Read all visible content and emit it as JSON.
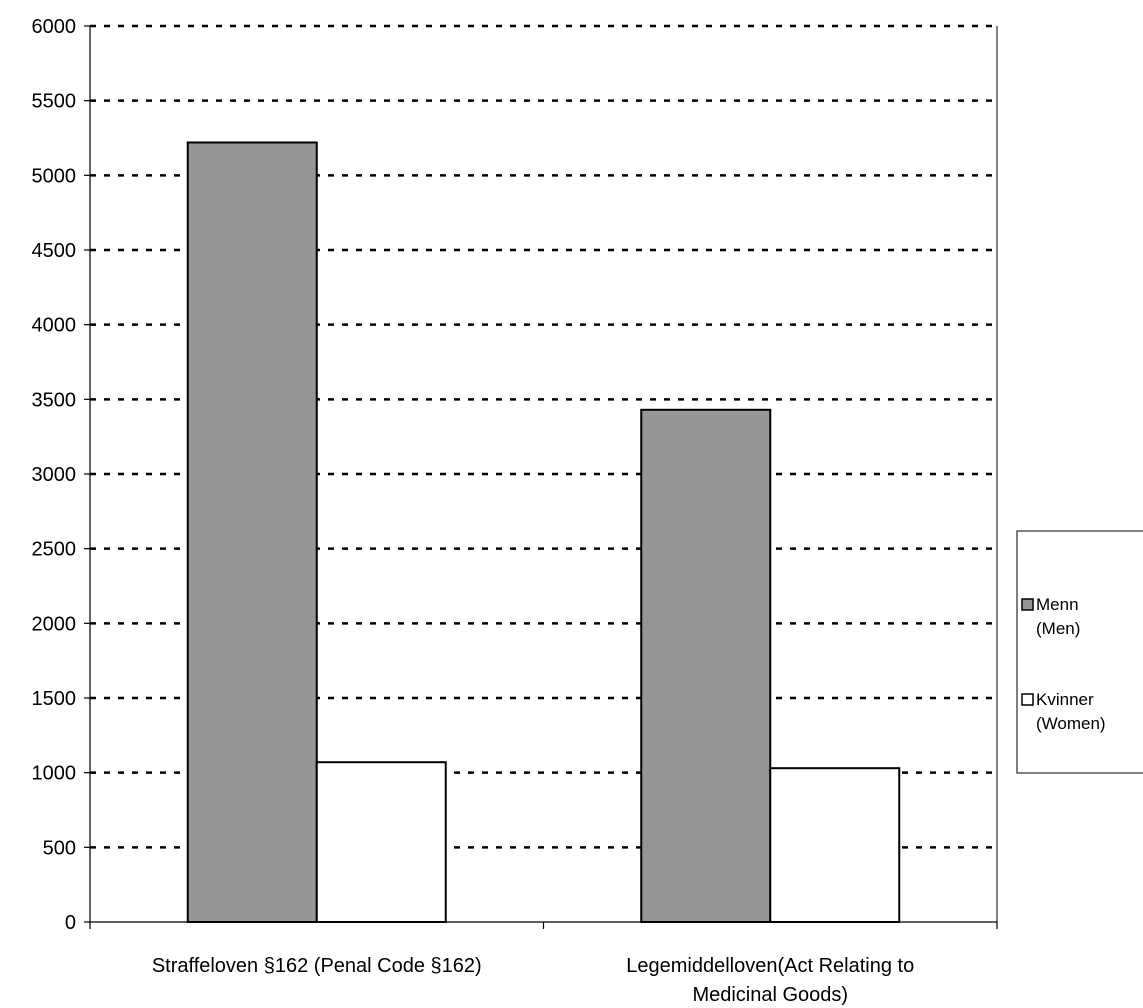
{
  "chart_data": {
    "type": "bar",
    "categories": [
      [
        "Straffeloven §162 (Penal Code §162)"
      ],
      [
        "Legemiddelloven(Act Relating to",
        "Medicinal Goods)"
      ]
    ],
    "series": [
      {
        "name": [
          "Menn",
          "(Men)"
        ],
        "values": [
          5220,
          3430
        ],
        "color": "#969696"
      },
      {
        "name": [
          "Kvinner",
          "(Women)"
        ],
        "values": [
          1070,
          1030
        ],
        "color": "#ffffff"
      }
    ],
    "ylim": [
      0,
      6000
    ],
    "yticks": [
      0,
      500,
      1000,
      1500,
      2000,
      2500,
      3000,
      3500,
      4000,
      4500,
      5000,
      5500,
      6000
    ],
    "grid": true,
    "legend_position": "right"
  }
}
